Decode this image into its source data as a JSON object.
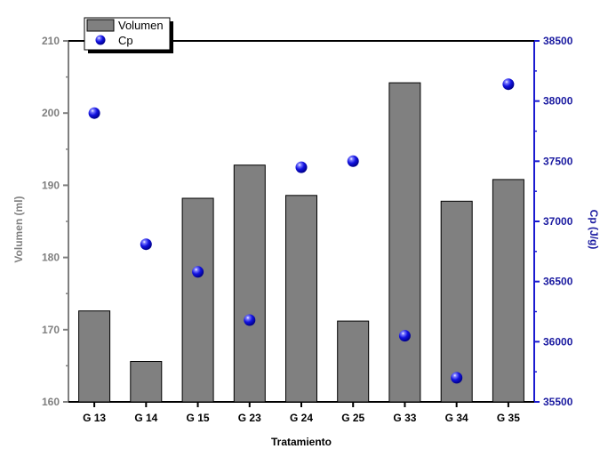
{
  "chart_data": {
    "type": "bar",
    "title": "",
    "xlabel": "Tratamiento",
    "ylabel": "Volumen (ml)",
    "y2label": "Cp (J/g)",
    "categories": [
      "G 13",
      "G 14",
      "G 15",
      "G 23",
      "G 24",
      "G 25",
      "G 33",
      "G 34",
      "G 35"
    ],
    "ylim": [
      160,
      210
    ],
    "y2lim": [
      35500,
      38500
    ],
    "yticks": [
      "160",
      "170",
      "180",
      "190",
      "200",
      "210"
    ],
    "y2ticks": [
      "35500",
      "36000",
      "36500",
      "37000",
      "37500",
      "38000",
      "38500"
    ],
    "series": [
      {
        "name": "Volumen",
        "type": "bar",
        "axis": "left",
        "color": "#808080",
        "values": [
          172.6,
          165.6,
          188.2,
          192.8,
          188.6,
          171.2,
          204.2,
          187.8,
          190.8
        ]
      },
      {
        "name": "Cp",
        "type": "scatter",
        "axis": "right",
        "color": "#1a1ad0",
        "values": [
          37900,
          36810,
          36580,
          36180,
          37450,
          37500,
          36050,
          35700,
          38140
        ]
      }
    ],
    "legend_position": "top-left",
    "grid": false
  }
}
